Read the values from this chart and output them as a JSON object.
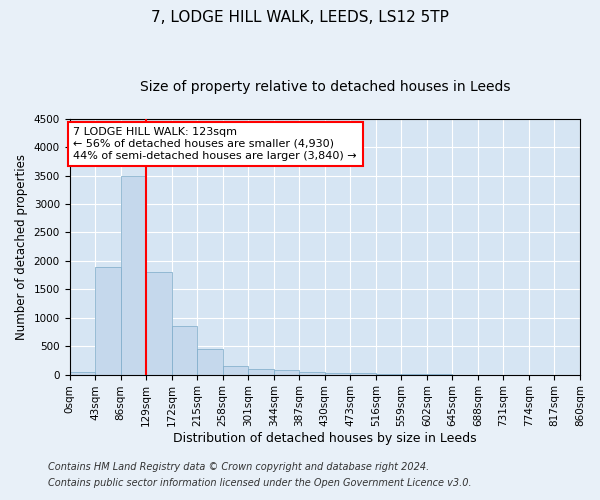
{
  "title1": "7, LODGE HILL WALK, LEEDS, LS12 5TP",
  "title2": "Size of property relative to detached houses in Leeds",
  "xlabel": "Distribution of detached houses by size in Leeds",
  "ylabel": "Number of detached properties",
  "bin_labels": [
    "0sqm",
    "43sqm",
    "86sqm",
    "129sqm",
    "172sqm",
    "215sqm",
    "258sqm",
    "301sqm",
    "344sqm",
    "387sqm",
    "430sqm",
    "473sqm",
    "516sqm",
    "559sqm",
    "602sqm",
    "645sqm",
    "688sqm",
    "731sqm",
    "774sqm",
    "817sqm",
    "860sqm"
  ],
  "bar_values": [
    50,
    1900,
    3500,
    1800,
    850,
    450,
    150,
    100,
    75,
    50,
    30,
    20,
    5,
    3,
    2,
    1,
    1,
    1,
    0,
    0
  ],
  "bar_color": "#c5d8ec",
  "bar_edge_color": "#7aaac8",
  "vline_x_index": 3,
  "vline_color": "red",
  "ylim": [
    0,
    4500
  ],
  "yticks": [
    0,
    500,
    1000,
    1500,
    2000,
    2500,
    3000,
    3500,
    4000,
    4500
  ],
  "annotation_text": "7 LODGE HILL WALK: 123sqm\n← 56% of detached houses are smaller (4,930)\n44% of semi-detached houses are larger (3,840) →",
  "annotation_box_color": "white",
  "annotation_box_edge": "red",
  "footer1": "Contains HM Land Registry data © Crown copyright and database right 2024.",
  "footer2": "Contains public sector information licensed under the Open Government Licence v3.0.",
  "background_color": "#e8f0f8",
  "plot_background": "#d6e5f3",
  "grid_color": "white",
  "title_fontsize": 11,
  "subtitle_fontsize": 10,
  "tick_fontsize": 7.5,
  "ylabel_fontsize": 8.5,
  "xlabel_fontsize": 9,
  "footer_fontsize": 7,
  "annotation_fontsize": 8
}
